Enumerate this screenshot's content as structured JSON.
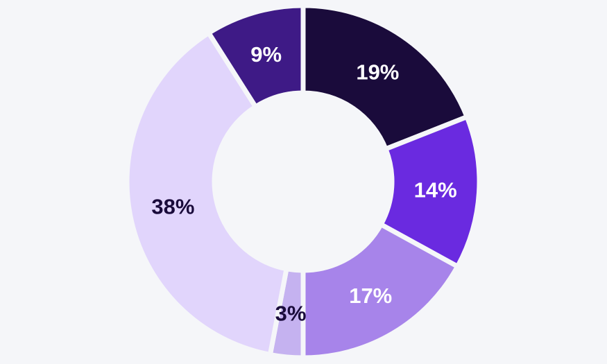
{
  "chart_data": {
    "type": "donut",
    "values": [
      19,
      14,
      17,
      3,
      38,
      9
    ],
    "value_labels": [
      "19%",
      "14%",
      "17%",
      "3%",
      "38%",
      "9%"
    ],
    "colors": [
      "#1a0b3b",
      "#6a2ae0",
      "#a784ea",
      "#c5b2f0",
      "#e1d5fc",
      "#3e1a86"
    ]
  }
}
